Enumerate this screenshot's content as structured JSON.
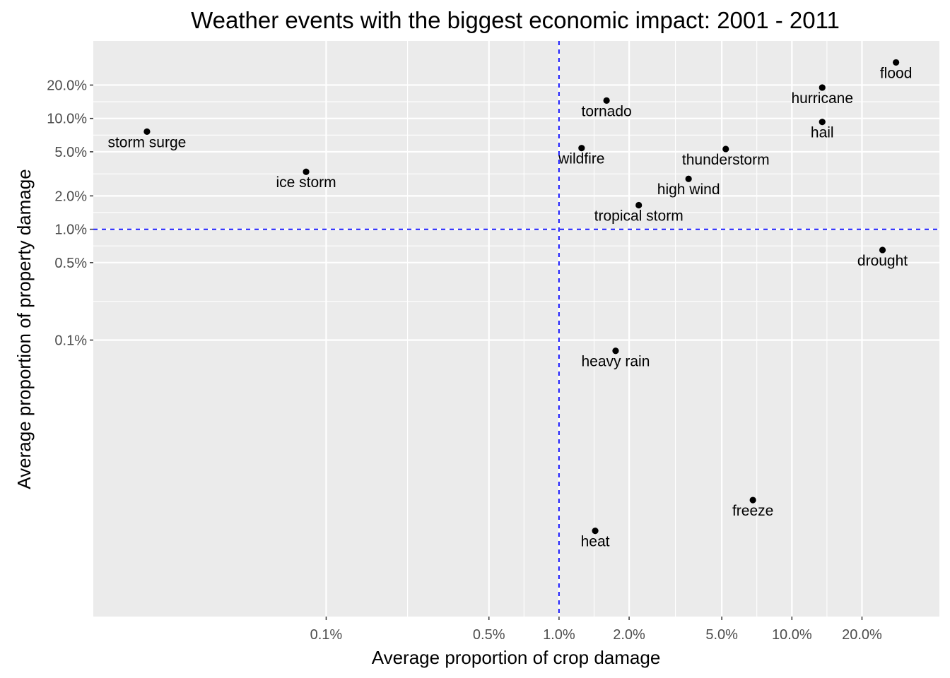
{
  "chart_data": {
    "type": "scatter",
    "title": "Weather events with the biggest economic impact: 2001 - 2011",
    "xlabel": "Average proportion of crop damage",
    "ylabel": "Average proportion of property damage",
    "x_scale": "log10",
    "y_scale": "log10",
    "xlim": [
      0.0001,
      0.43
    ],
    "ylim": [
      3.2e-06,
      0.5
    ],
    "grid": true,
    "x_ticks": [
      {
        "value": 0.001,
        "label": "0.1%"
      },
      {
        "value": 0.005,
        "label": "0.5%"
      },
      {
        "value": 0.01,
        "label": "1.0%"
      },
      {
        "value": 0.02,
        "label": "2.0%"
      },
      {
        "value": 0.05,
        "label": "5.0%"
      },
      {
        "value": 0.1,
        "label": "10.0%"
      },
      {
        "value": 0.2,
        "label": "20.0%"
      }
    ],
    "y_ticks": [
      {
        "value": 0.001,
        "label": "0.1%"
      },
      {
        "value": 0.005,
        "label": "0.5%"
      },
      {
        "value": 0.01,
        "label": "1.0%"
      },
      {
        "value": 0.02,
        "label": "2.0%"
      },
      {
        "value": 0.05,
        "label": "5.0%"
      },
      {
        "value": 0.1,
        "label": "10.0%"
      },
      {
        "value": 0.2,
        "label": "20.0%"
      }
    ],
    "reference_lines": {
      "x": 0.01,
      "y": 0.01,
      "color": "#0000ff",
      "style": "dashed"
    },
    "points": [
      {
        "label": "flood",
        "x": 0.28,
        "y": 0.32
      },
      {
        "label": "hurricane",
        "x": 0.135,
        "y": 0.19
      },
      {
        "label": "tornado",
        "x": 0.016,
        "y": 0.145
      },
      {
        "label": "hail",
        "x": 0.135,
        "y": 0.093
      },
      {
        "label": "storm surge",
        "x": 0.00017,
        "y": 0.076
      },
      {
        "label": "wildfire",
        "x": 0.0125,
        "y": 0.054
      },
      {
        "label": "thunderstorm",
        "x": 0.052,
        "y": 0.053
      },
      {
        "label": "ice storm",
        "x": 0.00082,
        "y": 0.033
      },
      {
        "label": "high wind",
        "x": 0.036,
        "y": 0.0285
      },
      {
        "label": "tropical storm",
        "x": 0.022,
        "y": 0.0165
      },
      {
        "label": "drought",
        "x": 0.245,
        "y": 0.0065
      },
      {
        "label": "heavy rain",
        "x": 0.0175,
        "y": 0.0008
      },
      {
        "label": "freeze",
        "x": 0.068,
        "y": 3.6e-05
      },
      {
        "label": "heat",
        "x": 0.0143,
        "y": 1.9e-05
      }
    ]
  }
}
